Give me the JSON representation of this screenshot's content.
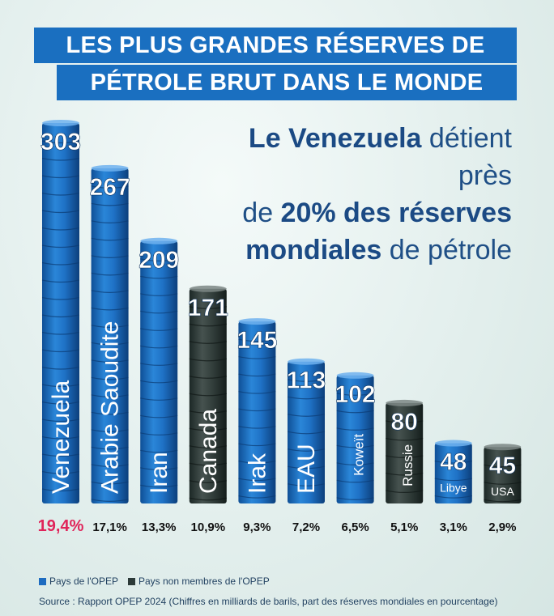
{
  "title": {
    "line1": "LES PLUS GRANDES RÉSERVES DE",
    "line2": "PÉTROLE BRUT DANS LE MONDE"
  },
  "subtitle": {
    "part1_bold": "Le Venezuela",
    "part2": " détient près",
    "part3": "de ",
    "part4_bold": "20% des réserves",
    "part5_bold": "mondiales",
    "part6": " de pétrole"
  },
  "legend": {
    "opec": "Pays de l'OPEP",
    "non_opec": "Pays non membres de l'OPEP"
  },
  "source": "Source : Rapport OPEP 2024 (Chiffres en milliards de barils, part des réserves mondiales en pourcentage)",
  "colors": {
    "opec": "#1e6cc0",
    "non_opec": "#2c3a38",
    "highlight": "#e0245a",
    "title_bg": "#1a6fc0"
  },
  "chart_data": {
    "type": "bar",
    "categories": [
      "Venezuela",
      "Arabie Saoudite",
      "Iran",
      "Canada",
      "Irak",
      "EAU",
      "Koweït",
      "Russie",
      "Libye",
      "USA"
    ],
    "values": [
      303,
      267,
      209,
      171,
      145,
      113,
      102,
      80,
      48,
      45
    ],
    "shares": [
      "19,4%",
      "17,1%",
      "13,3%",
      "10,9%",
      "9,3%",
      "7,2%",
      "6,5%",
      "5,1%",
      "3,1%",
      "2,9%"
    ],
    "opec": [
      true,
      true,
      true,
      false,
      true,
      true,
      true,
      false,
      true,
      false
    ],
    "unit": "milliards de barils"
  }
}
